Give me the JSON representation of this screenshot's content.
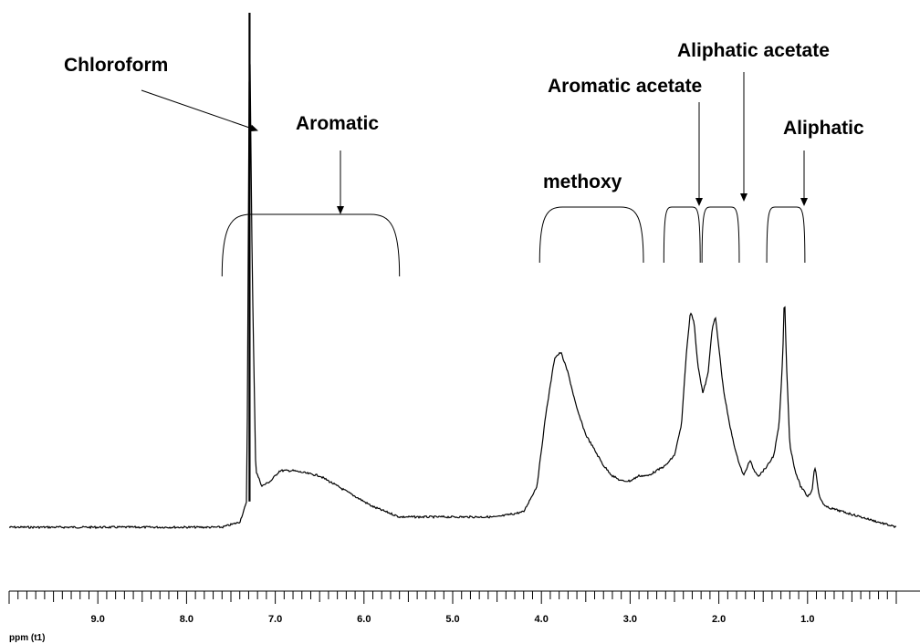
{
  "chart_data": {
    "type": "line",
    "title": "",
    "xlabel": "ppm (t1)",
    "ylabel": "",
    "x_reversed": true,
    "xlim": [
      10.0,
      0.0
    ],
    "grid": false,
    "legend": "none",
    "x_ticks": [
      "9.0",
      "8.0",
      "7.0",
      "6.0",
      "5.0",
      "4.0",
      "3.0",
      "2.0",
      "1.0"
    ],
    "series": [
      {
        "name": "",
        "x": [
          10.0,
          9.5,
          9.0,
          8.5,
          8.0,
          7.6,
          7.4,
          7.32,
          7.29,
          7.26,
          7.22,
          7.15,
          7.05,
          6.95,
          6.8,
          6.5,
          6.2,
          5.9,
          5.6,
          5.3,
          5.1,
          4.8,
          4.5,
          4.2,
          4.05,
          3.95,
          3.85,
          3.78,
          3.7,
          3.6,
          3.5,
          3.4,
          3.3,
          3.2,
          3.1,
          3.0,
          2.9,
          2.8,
          2.7,
          2.6,
          2.5,
          2.42,
          2.37,
          2.32,
          2.28,
          2.24,
          2.18,
          2.12,
          2.08,
          2.04,
          2.0,
          1.95,
          1.88,
          1.8,
          1.72,
          1.65,
          1.6,
          1.55,
          1.45,
          1.38,
          1.32,
          1.28,
          1.26,
          1.24,
          1.2,
          1.14,
          1.08,
          1.0,
          0.95,
          0.92,
          0.9,
          0.87,
          0.8,
          0.6,
          0.4,
          0.2,
          0.0
        ],
        "y": [
          0.0,
          0.0,
          0.0,
          0.0,
          0.0,
          0.0,
          0.01,
          0.05,
          1.0,
          0.5,
          0.11,
          0.08,
          0.09,
          0.11,
          0.11,
          0.1,
          0.07,
          0.04,
          0.02,
          0.02,
          0.02,
          0.02,
          0.02,
          0.03,
          0.08,
          0.22,
          0.33,
          0.34,
          0.3,
          0.23,
          0.18,
          0.15,
          0.12,
          0.1,
          0.09,
          0.09,
          0.1,
          0.1,
          0.11,
          0.12,
          0.14,
          0.2,
          0.33,
          0.42,
          0.4,
          0.32,
          0.26,
          0.3,
          0.38,
          0.41,
          0.35,
          0.27,
          0.2,
          0.14,
          0.1,
          0.13,
          0.11,
          0.1,
          0.12,
          0.14,
          0.2,
          0.33,
          0.46,
          0.33,
          0.16,
          0.11,
          0.08,
          0.06,
          0.07,
          0.12,
          0.1,
          0.06,
          0.04,
          0.03,
          0.02,
          0.01,
          0.0
        ]
      }
    ],
    "regions": [
      {
        "label": "Aromatic",
        "from": 7.6,
        "to": 5.6
      },
      {
        "label": "methoxy",
        "from": 4.02,
        "to": 2.85
      },
      {
        "label": "Aromatic acetate",
        "from": 2.62,
        "to": 2.21
      },
      {
        "label": "Aliphatic acetate",
        "from": 2.19,
        "to": 1.77
      },
      {
        "label": "Aliphatic",
        "from": 1.46,
        "to": 1.03
      }
    ],
    "annotations": [
      {
        "text": "Chloroform",
        "x": 7.29
      },
      {
        "text": "Aromatic",
        "x": 6.4
      },
      {
        "text": "methoxy",
        "x": 3.45
      },
      {
        "text": "Aromatic acetate",
        "x": 2.45
      },
      {
        "text": "Aliphatic acetate",
        "x": 2.04
      },
      {
        "text": "Aliphatic",
        "x": 1.32
      }
    ]
  }
}
